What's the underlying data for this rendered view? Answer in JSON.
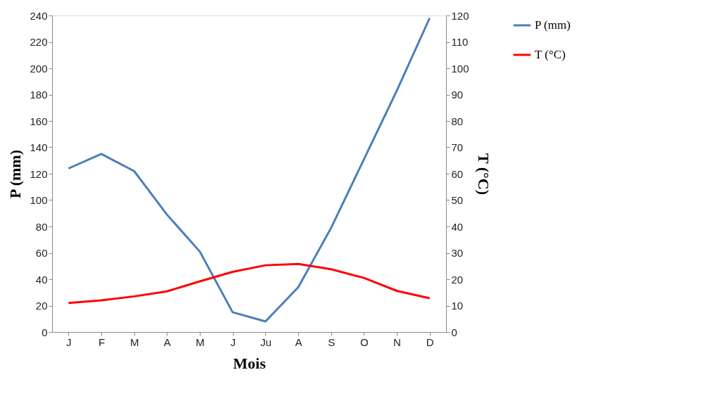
{
  "chart_data": {
    "type": "line",
    "xlabel": "Mois",
    "ylabel": "P (mm)",
    "y2label": "T (°C)",
    "categories": [
      "J",
      "F",
      "M",
      "A",
      "M",
      "J",
      "Ju",
      "A",
      "S",
      "O",
      "N",
      "D"
    ],
    "ylim": [
      0,
      240
    ],
    "yticks": [
      0,
      20,
      40,
      60,
      80,
      100,
      120,
      140,
      160,
      180,
      200,
      220,
      240
    ],
    "y2lim": [
      0,
      120
    ],
    "y2ticks": [
      0,
      10,
      20,
      30,
      40,
      50,
      60,
      70,
      80,
      90,
      100,
      110,
      120
    ],
    "series": [
      {
        "name": "P (mm)",
        "color": "#4a7ebb",
        "line_style": "solid",
        "values": [
          124,
          135,
          122,
          89,
          61,
          15,
          8,
          34,
          79,
          131,
          183,
          238
        ]
      },
      {
        "name": "T (°C)",
        "color": "#ff0000",
        "axis": "y2",
        "line_style": "solid",
        "values": [
          11,
          12,
          13.5,
          15.4,
          19.2,
          22.8,
          25.3,
          25.8,
          23.8,
          20.5,
          15.6,
          12.8
        ]
      }
    ],
    "grid": false,
    "legend": "right"
  }
}
